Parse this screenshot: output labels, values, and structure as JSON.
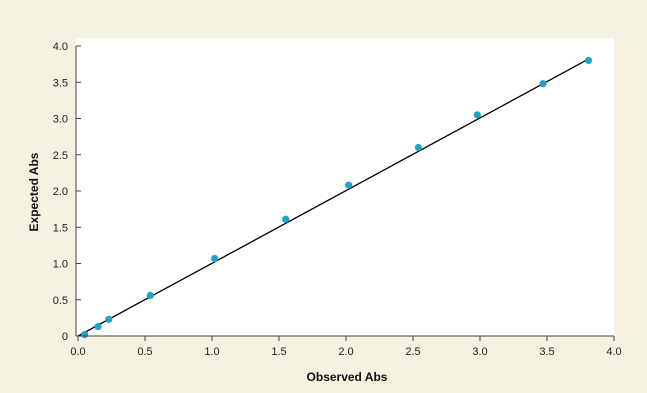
{
  "chart_data": {
    "type": "scatter",
    "title": "",
    "xlabel": "Observed Abs",
    "ylabel": "Expected Abs",
    "xlim": [
      0,
      4.0
    ],
    "ylim": [
      0,
      4.0
    ],
    "x_ticks": [
      "0.0",
      "0.5",
      "1.0",
      "1.5",
      "2.0",
      "2.5",
      "3.0",
      "3.5",
      "4.0"
    ],
    "y_ticks": [
      "0",
      "0.5",
      "1.0",
      "1.5",
      "2.0",
      "2.5",
      "3.0",
      "3.5",
      "4.0"
    ],
    "grid": false,
    "series": [
      {
        "x": [
          0.05,
          0.15,
          0.23,
          0.54,
          1.02,
          1.55,
          2.02,
          2.54,
          2.98,
          3.47,
          3.81
        ],
        "y": [
          0.02,
          0.13,
          0.23,
          0.56,
          1.07,
          1.61,
          2.08,
          2.6,
          3.05,
          3.48,
          3.8
        ],
        "color": "#1fa3c8"
      }
    ],
    "fit_line": {
      "x": [
        0.0,
        3.82
      ],
      "y": [
        0.0,
        3.83
      ],
      "color": "#000000"
    },
    "colors": {
      "background": "#f4f1e1",
      "plot_area": "#ffffff",
      "points": "#1fa3c8"
    }
  }
}
